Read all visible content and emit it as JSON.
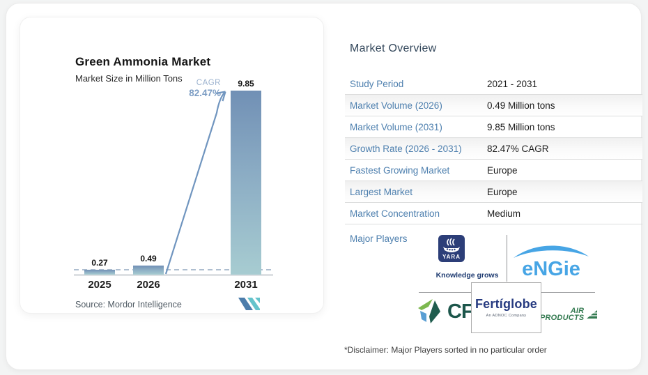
{
  "chart": {
    "title": "Green Ammonia Market",
    "subtitle": "Market Size in Million Tons",
    "cagr_label": "CAGR",
    "cagr_value": "82.47%",
    "source_text": "Source:  Mordor Intelligence",
    "bars": [
      {
        "year": "2025",
        "label": "0.27"
      },
      {
        "year": "2026",
        "label": "0.49"
      },
      {
        "year": "2031",
        "label": "9.85"
      }
    ]
  },
  "chart_data": {
    "type": "bar",
    "categories": [
      "2025",
      "2026",
      "2031"
    ],
    "values": [
      0.27,
      0.49,
      9.85
    ],
    "title": "Green Ammonia Market",
    "subtitle": "Market Size in Million Tons",
    "xlabel": "",
    "ylabel": "Market Size in Million Tons",
    "ylim": [
      0,
      9.85
    ],
    "grid": false,
    "annotations": [
      {
        "text": "CAGR 82.47%",
        "type": "growth-arrow",
        "from_category": "2026",
        "to_category": "2031"
      },
      {
        "type": "dashed-reference-line",
        "y": 0.27
      }
    ],
    "bar_color_gradient": [
      "#7190b5",
      "#a7ccd1"
    ],
    "source": "Mordor Intelligence"
  },
  "overview": {
    "title": "Market Overview",
    "rows": [
      {
        "label": "Study Period",
        "value": "2021 - 2031"
      },
      {
        "label": "Market Volume (2026)",
        "value": "0.49 Million tons"
      },
      {
        "label": "Market Volume (2031)",
        "value": "9.85 Million tons"
      },
      {
        "label": "Growth Rate (2026 - 2031)",
        "value": "82.47% CAGR"
      },
      {
        "label": "Fastest Growing Market",
        "value": "Europe"
      },
      {
        "label": "Largest Market",
        "value": "Europe"
      },
      {
        "label": "Market Concentration",
        "value": "Medium"
      }
    ],
    "major_players_label": "Major Players",
    "disclaimer": "*Disclaimer: Major Players sorted in no particular order"
  },
  "logos": {
    "yara": {
      "name": "YARA",
      "tagline": "Knowledge grows"
    },
    "engie": {
      "name": "eNGie"
    },
    "cf": {
      "name": "CF",
      "tm": "™"
    },
    "fertiglobe": {
      "name": "Fertíglobe",
      "subtitle": "An ADNOC Company"
    },
    "air_products": {
      "line1": "AIR",
      "line2": "PRODUCTS"
    }
  },
  "colors": {
    "accent_blue": "#4d7fae",
    "bar_top": "#7190b5",
    "bar_bottom": "#a7ccd1",
    "arrow": "#7095bf",
    "engie_blue": "#47a5e5",
    "yara_navy": "#2c3e78",
    "cf_green": "#1c564b",
    "fertiglobe_navy": "#263a80",
    "air_products_green": "#337a50"
  }
}
